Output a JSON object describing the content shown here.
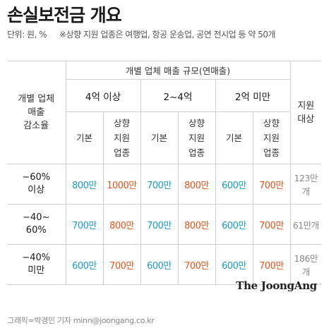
{
  "title": "손실보전금 개요",
  "unit": "단위: 원, %",
  "note": "※상향 지원 업종은 여행업, 항공 운송업, 공연 전시업 등 약 50개",
  "header": {
    "row_label": [
      "개별 업체",
      "매출",
      "감소율"
    ],
    "revenue_scale": "개별 업체 매출 규모(연매출)",
    "groups": [
      "4억 이상",
      "2~4억",
      "2억 미만"
    ],
    "basic": "기본",
    "raised": [
      "상향",
      "지원",
      "업종"
    ],
    "target": [
      "지원",
      "대상"
    ]
  },
  "rows": [
    {
      "band": [
        "−60%",
        "이상"
      ],
      "values": [
        "800만",
        "1000만",
        "700만",
        "800만",
        "600만",
        "700만"
      ],
      "target": "123만개"
    },
    {
      "band": [
        "−40~",
        "60%"
      ],
      "values": [
        "700만",
        "800만",
        "700만",
        "800만",
        "600만",
        "700만"
      ],
      "target": "61만개"
    },
    {
      "band": [
        "−40%",
        "미만"
      ],
      "values": [
        "600만",
        "700만",
        "600만",
        "700만",
        "600만",
        "700만"
      ],
      "target": "186만개"
    }
  ],
  "colors": {
    "basic": "#1a9bc7",
    "raised": "#e8531c",
    "target": "#8a8a8a"
  },
  "logo": "The JoongAng",
  "credit": "그래픽=박경민 기자 minn@joongang.co.kr"
}
